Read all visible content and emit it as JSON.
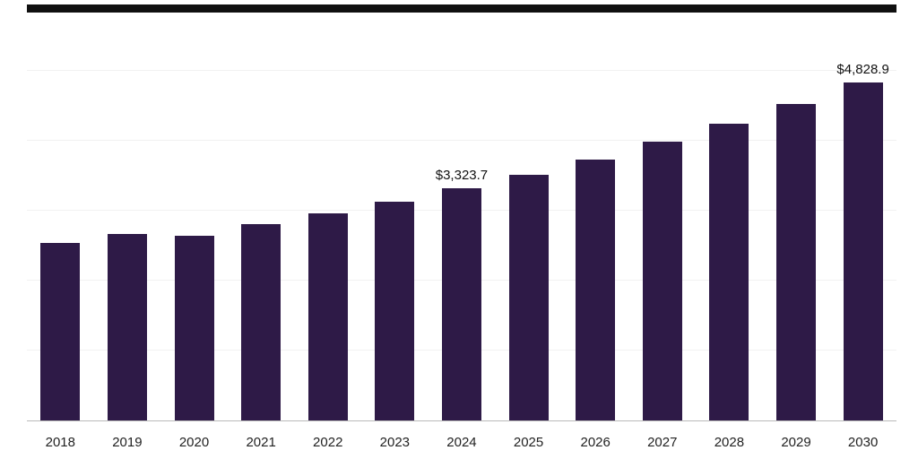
{
  "chart_data": {
    "type": "bar",
    "title": "",
    "xlabel": "",
    "ylabel": "",
    "categories": [
      "2018",
      "2019",
      "2020",
      "2021",
      "2022",
      "2023",
      "2024",
      "2025",
      "2026",
      "2027",
      "2028",
      "2029",
      "2030"
    ],
    "values": [
      2540,
      2660,
      2635,
      2810,
      2965,
      3130,
      3323.7,
      3515,
      3730,
      3990,
      4245,
      4525,
      4828.9
    ],
    "data_labels": {
      "2024": "$3,323.7",
      "2030": "$4,828.9"
    },
    "ylim": [
      0,
      5830
    ],
    "gridlines": [
      1000,
      2000,
      3000,
      4000,
      5000
    ],
    "grid_on": true,
    "legend": "none",
    "bar_color": "#2e1a47",
    "grid_color": "#f1f1f1",
    "axis_line_color": "#b9b9b9",
    "label_color": "#111111"
  }
}
